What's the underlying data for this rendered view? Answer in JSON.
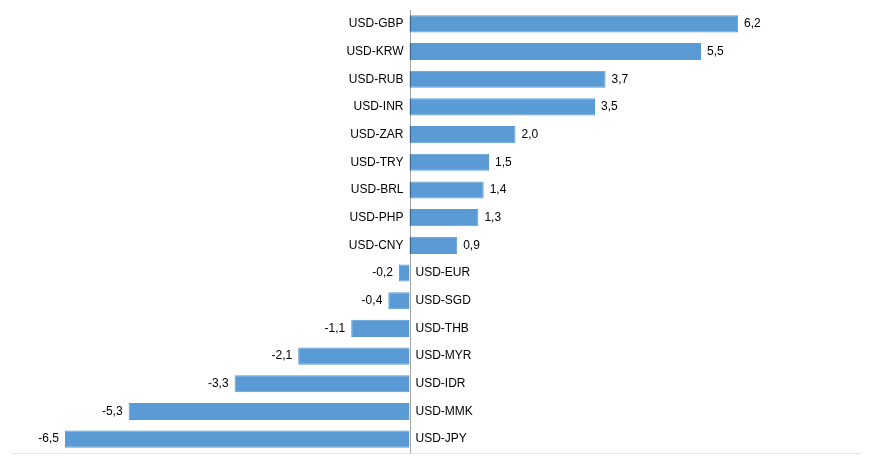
{
  "chart_data": {
    "type": "bar",
    "orientation": "horizontal",
    "categories": [
      "USD-GBP",
      "USD-KRW",
      "USD-RUB",
      "USD-INR",
      "USD-ZAR",
      "USD-TRY",
      "USD-BRL",
      "USD-PHP",
      "USD-CNY",
      "USD-EUR",
      "USD-SGD",
      "USD-THB",
      "USD-MYR",
      "USD-IDR",
      "USD-MMK",
      "USD-JPY"
    ],
    "values": [
      6.2,
      5.5,
      3.7,
      3.5,
      2.0,
      1.5,
      1.4,
      1.3,
      0.9,
      -0.2,
      -0.4,
      -1.1,
      -2.1,
      -3.3,
      -5.3,
      -6.5
    ],
    "value_labels": [
      "6,2",
      "5,5",
      "3,7",
      "3,5",
      "2,0",
      "1,5",
      "1,4",
      "1,3",
      "0,9",
      "-0,2",
      "-0,4",
      "-1,1",
      "-2,1",
      "-3,3",
      "-5,3",
      "-6,5"
    ],
    "color": "#5b9bd5",
    "xlim": [
      -7.5,
      8.5
    ],
    "xticks": [],
    "grid": false,
    "tick_labels": false,
    "data_labels": true
  }
}
